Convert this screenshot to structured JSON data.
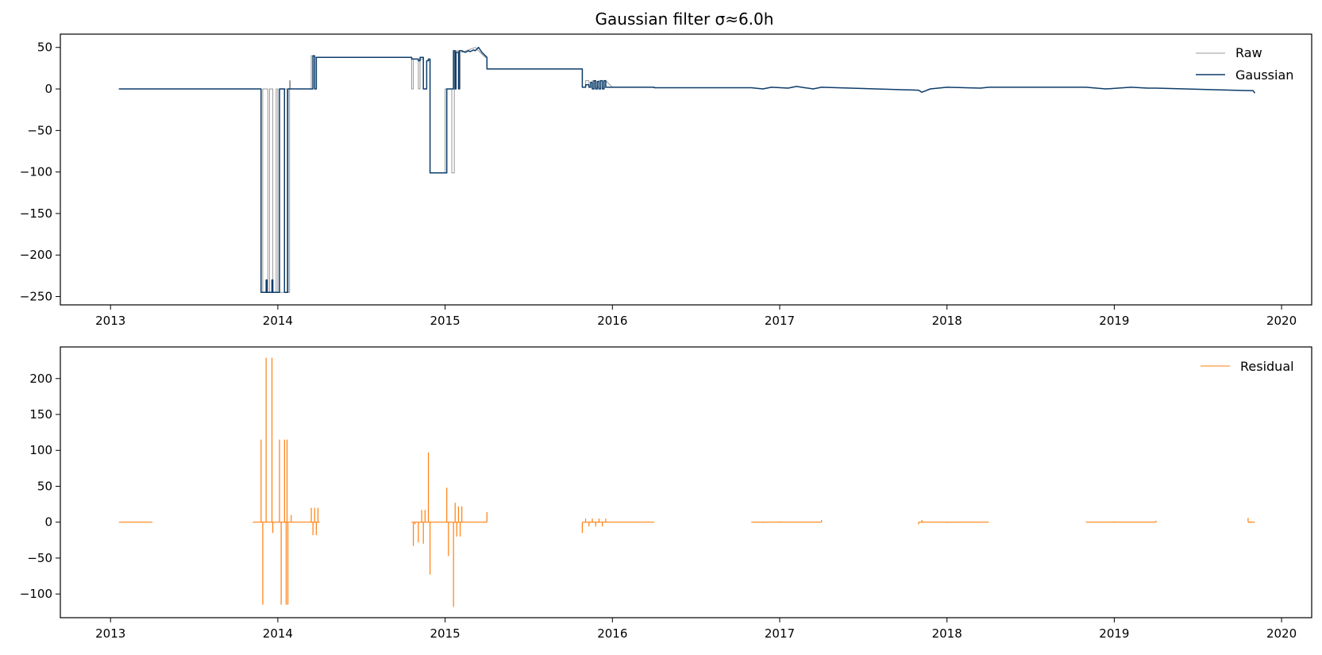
{
  "figure": {
    "title": "Gaussian filter σ≈6.0h"
  },
  "chart_data": [
    {
      "type": "line",
      "title": "Gaussian filter σ≈6.0h",
      "xlabel": "",
      "ylabel": "",
      "xlim": [
        2012.7,
        2020.18
      ],
      "ylim": [
        -260,
        66
      ],
      "x_ticks": [
        2013,
        2014,
        2015,
        2016,
        2017,
        2018,
        2019,
        2020
      ],
      "x_tick_labels": [
        "2013",
        "2014",
        "2015",
        "2016",
        "2017",
        "2018",
        "2019",
        "2020"
      ],
      "y_ticks": [
        50,
        0,
        -50,
        -100,
        -150,
        -200,
        -250
      ],
      "y_tick_labels": [
        "50",
        "0",
        "−50",
        "−100",
        "−150",
        "−200",
        "−250"
      ],
      "grid": false,
      "legend_position": "top-right",
      "series": [
        {
          "name": "Raw",
          "color": "#999999",
          "x": [
            2013.05,
            2013.9,
            2013.9,
            2013.91,
            2013.91,
            2013.94,
            2013.94,
            2013.95,
            2013.95,
            2013.97,
            2013.97,
            2013.99,
            2013.99,
            2014.0,
            2014.0,
            2014.04,
            2014.04,
            2014.055,
            2014.055,
            2014.07,
            2014.07,
            2014.075,
            2014.075,
            2014.08,
            2014.08,
            2014.2,
            2014.2,
            2014.22,
            2014.22,
            2014.24,
            2014.24,
            2014.8,
            2014.8,
            2014.81,
            2014.81,
            2014.84,
            2014.84,
            2014.85,
            2014.85,
            2014.87,
            2014.87,
            2014.89,
            2014.89,
            2014.91,
            2014.91,
            2015.0,
            2015.0,
            2015.04,
            2015.04,
            2015.055,
            2015.055,
            2015.06,
            2015.06,
            2015.065,
            2015.065,
            2015.08,
            2015.08,
            2015.09,
            2015.09,
            2015.1,
            2015.1,
            2015.18,
            2015.22,
            2015.24,
            2015.25,
            2015.25,
            2015.82,
            2015.82,
            2015.84,
            2015.84,
            2015.86,
            2015.86,
            2015.88,
            2015.88,
            2015.9,
            2015.9,
            2015.92,
            2015.92,
            2015.94,
            2015.94,
            2015.96,
            2015.96,
            2016.0,
            2016.25,
            2016.25,
            2016.83,
            2016.9,
            2016.95,
            2017.05,
            2017.1,
            2017.2,
            2017.25,
            2017.25,
            2017.83,
            2017.83,
            2017.85,
            2017.85,
            2017.9,
            2018.0,
            2018.2,
            2018.25,
            2018.83,
            2018.95,
            2019.1,
            2019.2,
            2019.25,
            2019.25,
            2019.8,
            2019.8,
            2019.83,
            2019.83,
            2019.84,
            2019.84
          ],
          "y": [
            0,
            0,
            -245,
            -245,
            0,
            0,
            -245,
            -245,
            0,
            0,
            -245,
            -245,
            0,
            0,
            -245,
            -245,
            0,
            0,
            -245,
            -245,
            10,
            10,
            0,
            0,
            0,
            0,
            40,
            40,
            38,
            38,
            38,
            38,
            0,
            0,
            36,
            36,
            0,
            0,
            36,
            36,
            0,
            0,
            34,
            34,
            -101,
            -101,
            0,
            0,
            -101,
            -101,
            46,
            46,
            0,
            0,
            46,
            46,
            0,
            0,
            46,
            46,
            44,
            50,
            42,
            38,
            38,
            24,
            24,
            2,
            2,
            10,
            10,
            2,
            2,
            10,
            10,
            2,
            2,
            10,
            10,
            2,
            2,
            10,
            2,
            2,
            1.5,
            1.5,
            0,
            2,
            1,
            3,
            0,
            2,
            2,
            -1.5,
            -1.5,
            -4,
            -4,
            0,
            2,
            1,
            2,
            2,
            0,
            2,
            1,
            1,
            1,
            -2,
            -2,
            -2,
            -2,
            -5,
            -5
          ]
        },
        {
          "name": "Gaussian",
          "color": "#0d3d6b",
          "x": [
            2013.05,
            2013.9,
            2013.9,
            2013.93,
            2013.93,
            2013.935,
            2013.935,
            2013.965,
            2013.965,
            2013.97,
            2013.97,
            2014.01,
            2014.01,
            2014.04,
            2014.04,
            2014.06,
            2014.06,
            2014.2,
            2014.2,
            2014.21,
            2014.21,
            2014.22,
            2014.22,
            2014.23,
            2014.23,
            2014.24,
            2014.24,
            2014.8,
            2014.8,
            2014.84,
            2014.84,
            2014.85,
            2014.85,
            2014.87,
            2014.87,
            2014.89,
            2014.89,
            2014.9,
            2014.9,
            2014.91,
            2014.91,
            2015.01,
            2015.01,
            2015.04,
            2015.04,
            2015.05,
            2015.05,
            2015.06,
            2015.06,
            2015.065,
            2015.065,
            2015.08,
            2015.08,
            2015.085,
            2015.085,
            2015.1,
            2015.12,
            2015.14,
            2015.15,
            2015.17,
            2015.18,
            2015.2,
            2015.22,
            2015.24,
            2015.25,
            2015.25,
            2015.82,
            2015.82,
            2015.84,
            2015.84,
            2015.86,
            2015.86,
            2015.87,
            2015.87,
            2015.88,
            2015.88,
            2015.89,
            2015.89,
            2015.9,
            2015.9,
            2015.91,
            2015.91,
            2015.92,
            2015.92,
            2015.93,
            2015.93,
            2015.94,
            2015.94,
            2015.95,
            2015.95,
            2015.96,
            2015.96,
            2016.0,
            2016.25,
            2016.25,
            2016.83,
            2016.9,
            2016.95,
            2017.05,
            2017.1,
            2017.2,
            2017.25,
            2017.25,
            2017.83,
            2017.83,
            2017.85,
            2017.85,
            2017.9,
            2018.0,
            2018.2,
            2018.25,
            2018.83,
            2018.95,
            2019.1,
            2019.2,
            2019.25,
            2019.25,
            2019.8,
            2019.8,
            2019.83,
            2019.83,
            2019.84,
            2019.84
          ],
          "y": [
            0,
            0,
            -245,
            -245,
            -230,
            -230,
            -245,
            -245,
            -230,
            -230,
            -245,
            -245,
            0,
            0,
            -245,
            -245,
            0,
            0,
            0,
            0,
            40,
            40,
            0,
            0,
            38,
            38,
            38,
            38,
            36,
            36,
            34,
            34,
            38,
            38,
            0,
            0,
            34,
            34,
            36,
            36,
            -101,
            -101,
            0,
            0,
            0,
            0,
            46,
            46,
            0,
            0,
            44,
            44,
            0,
            0,
            46,
            46,
            44,
            46,
            45,
            47,
            46,
            50,
            44,
            40,
            38,
            24,
            24,
            2,
            2,
            5,
            5,
            2,
            2,
            8,
            8,
            0,
            0,
            10,
            10,
            0,
            0,
            9,
            9,
            0,
            0,
            10,
            10,
            0,
            0,
            10,
            10,
            2,
            2,
            2,
            1.5,
            1.5,
            0,
            2,
            1,
            3,
            0,
            2,
            2,
            -1.5,
            -1.5,
            -4,
            -4,
            0,
            2,
            1,
            2,
            2,
            0,
            2,
            1,
            1,
            1,
            -2,
            -2,
            -2,
            -2,
            -5,
            -5
          ]
        }
      ]
    },
    {
      "type": "line",
      "title": "",
      "xlabel": "",
      "ylabel": "",
      "xlim": [
        2012.7,
        2020.18
      ],
      "ylim": [
        -133,
        244
      ],
      "x_ticks": [
        2013,
        2014,
        2015,
        2016,
        2017,
        2018,
        2019,
        2020
      ],
      "x_tick_labels": [
        "2013",
        "2014",
        "2015",
        "2016",
        "2017",
        "2018",
        "2019",
        "2020"
      ],
      "y_ticks": [
        200,
        150,
        100,
        50,
        0,
        -50,
        -100
      ],
      "y_tick_labels": [
        "200",
        "150",
        "100",
        "50",
        "0",
        "−50",
        "−100"
      ],
      "grid": false,
      "legend_position": "top-right",
      "segments": [
        [
          2013.05,
          2013.25
        ],
        [
          2013.85,
          2014.25
        ],
        [
          2014.8,
          2015.25
        ],
        [
          2015.82,
          2016.25
        ],
        [
          2016.83,
          2017.25
        ],
        [
          2017.83,
          2018.25
        ],
        [
          2018.83,
          2019.25
        ],
        [
          2019.8,
          2019.84
        ]
      ],
      "series": [
        {
          "name": "Residual",
          "color": "#ff7f0e",
          "spikes": [
            [
              2013.9,
              115
            ],
            [
              2013.91,
              -115
            ],
            [
              2013.93,
              229
            ],
            [
              2013.965,
              229
            ],
            [
              2013.97,
              -15
            ],
            [
              2014.01,
              115
            ],
            [
              2014.02,
              -115
            ],
            [
              2014.04,
              115
            ],
            [
              2014.05,
              -115
            ],
            [
              2014.055,
              115
            ],
            [
              2014.06,
              -115
            ],
            [
              2014.08,
              10
            ],
            [
              2014.2,
              20
            ],
            [
              2014.21,
              -18
            ],
            [
              2014.22,
              20
            ],
            [
              2014.23,
              -18
            ],
            [
              2014.24,
              20
            ],
            [
              2014.81,
              -33
            ],
            [
              2014.82,
              -3
            ],
            [
              2014.84,
              -28
            ],
            [
              2014.86,
              17
            ],
            [
              2014.87,
              -30
            ],
            [
              2014.88,
              17
            ],
            [
              2014.9,
              97
            ],
            [
              2014.91,
              -73
            ],
            [
              2015.01,
              48
            ],
            [
              2015.02,
              -47
            ],
            [
              2015.05,
              -118
            ],
            [
              2015.06,
              27
            ],
            [
              2015.07,
              -20
            ],
            [
              2015.08,
              22
            ],
            [
              2015.09,
              -20
            ],
            [
              2015.1,
              22
            ],
            [
              2015.25,
              14
            ],
            [
              2015.82,
              -15
            ],
            [
              2015.84,
              5
            ],
            [
              2015.86,
              -6
            ],
            [
              2015.88,
              5
            ],
            [
              2015.9,
              -6
            ],
            [
              2015.92,
              5
            ],
            [
              2015.94,
              -6
            ],
            [
              2015.96,
              5
            ],
            [
              2016.9,
              -1
            ],
            [
              2017.0,
              1
            ],
            [
              2017.25,
              3
            ],
            [
              2017.83,
              -3
            ],
            [
              2017.85,
              3
            ],
            [
              2018.0,
              -1
            ],
            [
              2019.0,
              1
            ],
            [
              2019.25,
              2
            ],
            [
              2019.8,
              6
            ],
            [
              2019.81,
              -1
            ]
          ]
        }
      ]
    }
  ]
}
